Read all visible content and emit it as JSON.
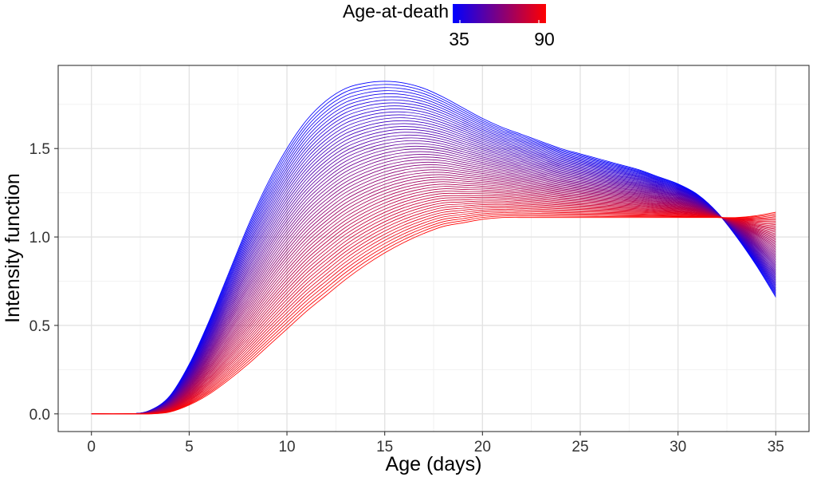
{
  "chart_data": {
    "type": "line",
    "title": "",
    "xlabel": "Age (days)",
    "ylabel": "Intensity function",
    "xlim": [
      -1.7,
      36.7
    ],
    "ylim": [
      -0.1,
      1.97
    ],
    "x_ticks": [
      0,
      5,
      10,
      15,
      20,
      25,
      30,
      35
    ],
    "x_tick_labels": [
      "0",
      "5",
      "10",
      "15",
      "20",
      "25",
      "30",
      "35"
    ],
    "y_ticks": [
      0.0,
      0.5,
      1.0,
      1.5
    ],
    "y_tick_labels": [
      "0.0",
      "0.5",
      "1.0",
      "1.5"
    ],
    "grid": true,
    "legend": {
      "title": "Age-at-death",
      "placement": "top",
      "min_label": "35",
      "max_label": "90",
      "min_value": 35,
      "max_value": 90,
      "colors": [
        "#0000ff",
        "#ff0000"
      ]
    },
    "color_scale": {
      "low": "#0000ff",
      "high": "#ff0000"
    },
    "series_count": 56,
    "series_rule": "one curve per age-at-death from 35 to 90 (step 1); colored by the gradient scale",
    "x": [
      0,
      2,
      3,
      4,
      5,
      6,
      7,
      8,
      9,
      10,
      11,
      12,
      13,
      14,
      15,
      16,
      17,
      18,
      19,
      20,
      21,
      22,
      23,
      24,
      25,
      26,
      27,
      28,
      29,
      30,
      31,
      32,
      33,
      34,
      35
    ],
    "series": [
      {
        "name": "Age-at-death 35",
        "age_at_death": 35,
        "values": [
          0,
          0,
          0.02,
          0.1,
          0.28,
          0.52,
          0.79,
          1.06,
          1.3,
          1.5,
          1.66,
          1.77,
          1.84,
          1.87,
          1.88,
          1.87,
          1.84,
          1.79,
          1.73,
          1.67,
          1.62,
          1.58,
          1.54,
          1.5,
          1.47,
          1.44,
          1.41,
          1.38,
          1.34,
          1.3,
          1.24,
          1.14,
          1.0,
          0.84,
          0.66
        ]
      },
      {
        "name": "Age-at-death 90",
        "age_at_death": 90,
        "values": [
          0,
          0,
          0,
          0.01,
          0.05,
          0.11,
          0.19,
          0.28,
          0.38,
          0.48,
          0.58,
          0.67,
          0.76,
          0.84,
          0.91,
          0.97,
          1.02,
          1.06,
          1.08,
          1.1,
          1.11,
          1.11,
          1.11,
          1.11,
          1.11,
          1.11,
          1.11,
          1.11,
          1.11,
          1.11,
          1.11,
          1.11,
          1.11,
          1.12,
          1.14
        ]
      }
    ]
  }
}
